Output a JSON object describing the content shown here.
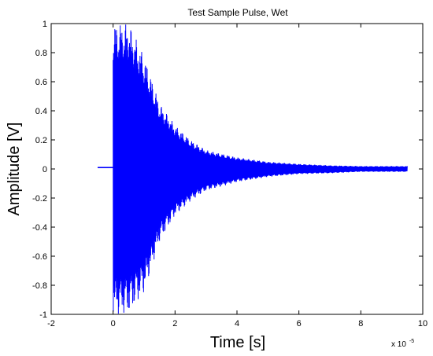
{
  "chart_data": {
    "type": "line",
    "title": "Test Sample Pulse, Wet",
    "xlabel": "Time [s]",
    "ylabel": "Amplitude [V]",
    "x_exponent_label": "x 10",
    "x_exponent_power": "-5",
    "xlim": [
      -2,
      10
    ],
    "ylim": [
      -1,
      1
    ],
    "x_unit_scale": "1e-5",
    "xticks": [
      "-2",
      "0",
      "2",
      "4",
      "6",
      "8",
      "10"
    ],
    "yticks": [
      "-1",
      "-0.8",
      "-0.6",
      "-0.4",
      "-0.2",
      "0",
      "0.2",
      "0.4",
      "0.6",
      "0.8",
      "1"
    ],
    "grid": false,
    "line_color": "#0000ff",
    "series": [
      {
        "pre_pulse": {
          "x_start": -0.5,
          "x_end": 0,
          "value": 0.01
        },
        "decay_envelope": {
          "x": [
            0,
            0.5,
            1,
            1.5,
            2,
            2.5,
            3,
            4,
            5,
            6,
            7,
            8,
            9,
            9.5
          ],
          "upper": [
            1.0,
            1.0,
            0.78,
            0.45,
            0.3,
            0.2,
            0.13,
            0.08,
            0.05,
            0.035,
            0.025,
            0.02,
            0.02,
            0.02
          ],
          "lower": [
            -1.0,
            -1.0,
            -0.85,
            -0.5,
            -0.32,
            -0.22,
            -0.15,
            -0.09,
            -0.055,
            -0.035,
            -0.03,
            -0.02,
            -0.02,
            -0.02
          ]
        }
      }
    ]
  }
}
